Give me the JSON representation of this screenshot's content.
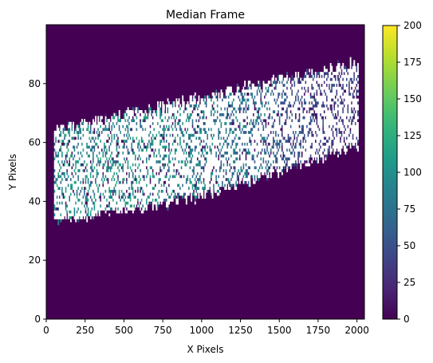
{
  "chart_data": {
    "type": "heatmap",
    "title": "Median Frame",
    "xlabel": "X Pixels",
    "ylabel": "Y Pixels",
    "xlim": [
      0,
      2048
    ],
    "ylim": [
      0,
      100
    ],
    "x_ticks": [
      0,
      250,
      500,
      750,
      1000,
      1250,
      1500,
      1750,
      2000
    ],
    "x_tick_labels": [
      "0",
      "250",
      "500",
      "750",
      "1000",
      "1250",
      "1500",
      "1750",
      "2000"
    ],
    "y_ticks": [
      0,
      20,
      40,
      60,
      80
    ],
    "y_tick_labels": [
      "0",
      "20",
      "40",
      "60",
      "80"
    ],
    "colormap": "viridis",
    "vmin": 0,
    "vmax": 200,
    "colorbar_ticks": [
      0,
      25,
      50,
      75,
      100,
      125,
      150,
      175,
      200
    ],
    "colorbar_tick_labels": [
      "0",
      "25",
      "50",
      "75",
      "100",
      "125",
      "150",
      "175",
      "200"
    ],
    "background_value": 0,
    "nan_color": "#ffffff",
    "band": {
      "x_start": 50,
      "x_end": 2010,
      "lower_edge": [
        [
          50,
          34
        ],
        [
          500,
          37
        ],
        [
          1000,
          42
        ],
        [
          1500,
          51
        ],
        [
          2010,
          59
        ]
      ],
      "upper_edge": [
        [
          50,
          64
        ],
        [
          500,
          69
        ],
        [
          1000,
          75
        ],
        [
          1500,
          81
        ],
        [
          2010,
          87
        ]
      ],
      "typical_values": [
        [
          50,
          105
        ],
        [
          800,
          100
        ],
        [
          1300,
          80
        ],
        [
          1700,
          50
        ],
        [
          2010,
          40
        ]
      ],
      "nan_fraction": 0.72
    },
    "grid": false,
    "colorbar_position": "right"
  }
}
